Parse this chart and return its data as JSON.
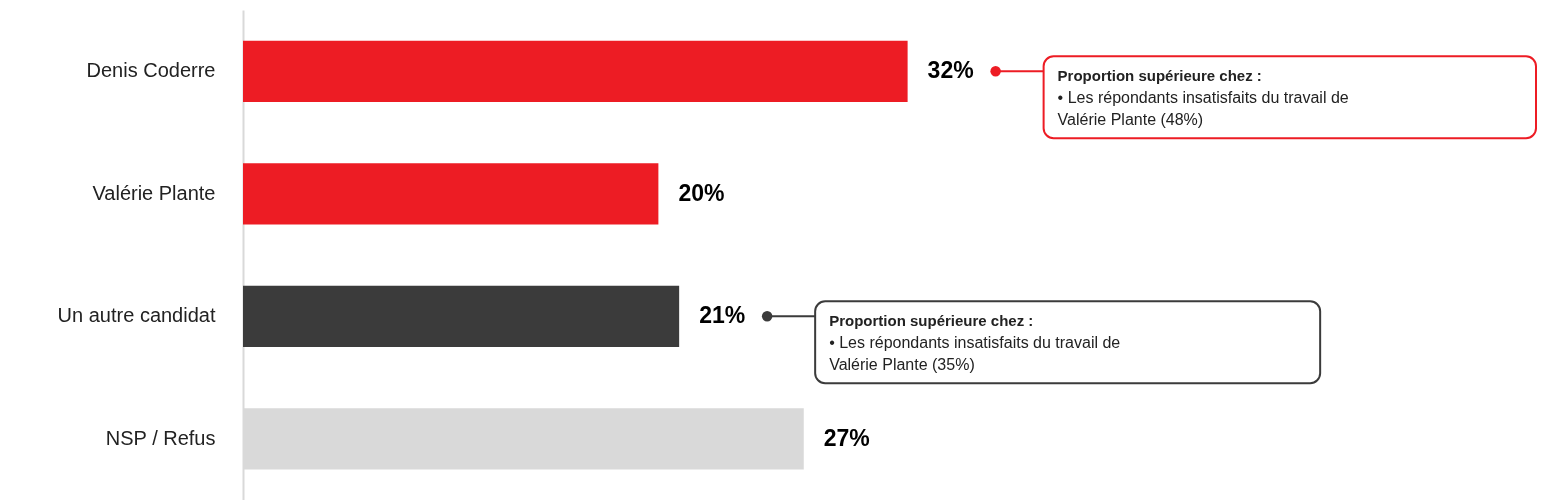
{
  "chart_data": {
    "type": "bar",
    "orientation": "horizontal",
    "categories": [
      "Denis Coderre",
      "Valérie Plante",
      "Un autre candidat",
      "NSP / Refus"
    ],
    "values": [
      32,
      20,
      21,
      27
    ],
    "colors": [
      "#ed1c24",
      "#ed1c24",
      "#3b3b3b",
      "#d9d9d9"
    ],
    "value_labels": [
      "32%",
      "20%",
      "21%",
      "27%"
    ],
    "annotations": [
      "Proportion supérieure chez :",
      "• Les répondants insatisfaits du travail de Valérie Plante (48%)",
      "Proportion supérieure chez :",
      "• Les répondants insatisfaits du travail de Valérie Plante (35%)"
    ],
    "grid": false
  }
}
